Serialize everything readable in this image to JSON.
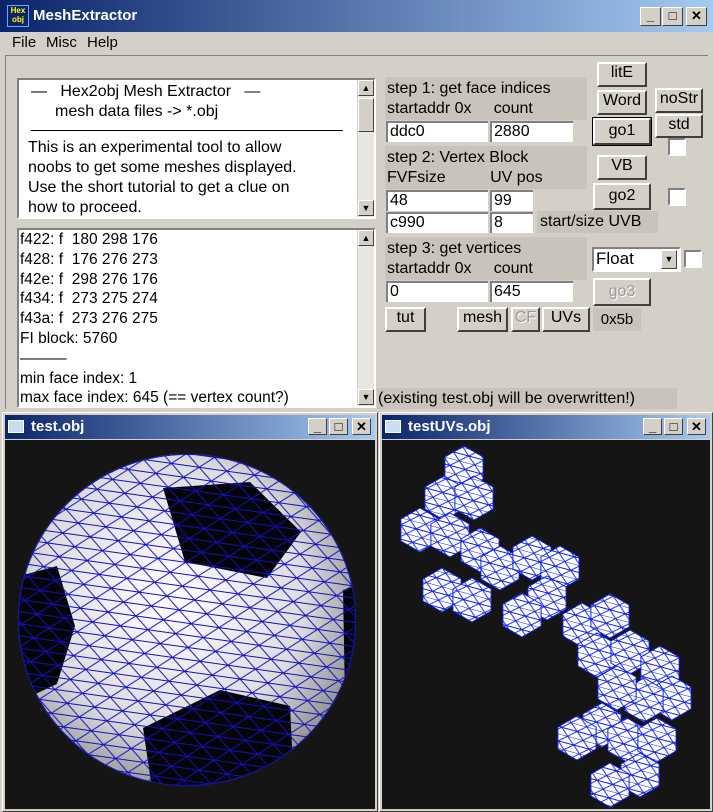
{
  "window": {
    "title": "MeshExtractor",
    "icon_lines": [
      "Hex",
      "obj"
    ]
  },
  "menu": [
    "File",
    "Misc",
    "Help"
  ],
  "info": {
    "heading": [
      "—   Hex2obj Mesh Extractor   —",
      "mesh data files -> *.obj"
    ],
    "lines": [
      "This is an experimental tool to allow",
      "noobs to get some meshes displayed.",
      "Use the short tutorial to get a clue on",
      "how to proceed."
    ]
  },
  "log": [
    "f422: f  180 298 176",
    "f428: f  176 276 273",
    "f42e: f  298 276 176",
    "f434: f  273 275 274",
    "f43a: f  273 276 275",
    "FI block: 5760",
    "———",
    "min face index: 1",
    "max face index: 645 (== vertex count?)"
  ],
  "step1": {
    "title": "step 1: get face indices",
    "labels": "startaddr 0x     count",
    "startaddr": "ddc0",
    "count": "2880"
  },
  "step2": {
    "title": "step 2: Vertex Block",
    "labels": "FVFsize          UV pos",
    "fvfsize": "48",
    "uvpos": "99",
    "uvb_start": "c990",
    "uvb_size": "8",
    "uvb_label": "start/size UVB"
  },
  "step3": {
    "title": "step 3: get vertices",
    "labels": "startaddr 0x     count",
    "startaddr": "0",
    "count": "645",
    "format": "Float"
  },
  "buttons": {
    "lite": "litE",
    "word": "Word",
    "go1": "go1",
    "nostr": "noStr",
    "std": "std",
    "vb": "VB",
    "go2": "go2",
    "go3": "go3",
    "tut": "tut",
    "mesh": "mesh",
    "cf": "CF",
    "uvs": "UVs"
  },
  "status": "0x5b",
  "note": "(existing test.obj will be overwritten!)",
  "views": [
    {
      "title": "test.obj"
    },
    {
      "title": "testUVs.obj"
    }
  ]
}
